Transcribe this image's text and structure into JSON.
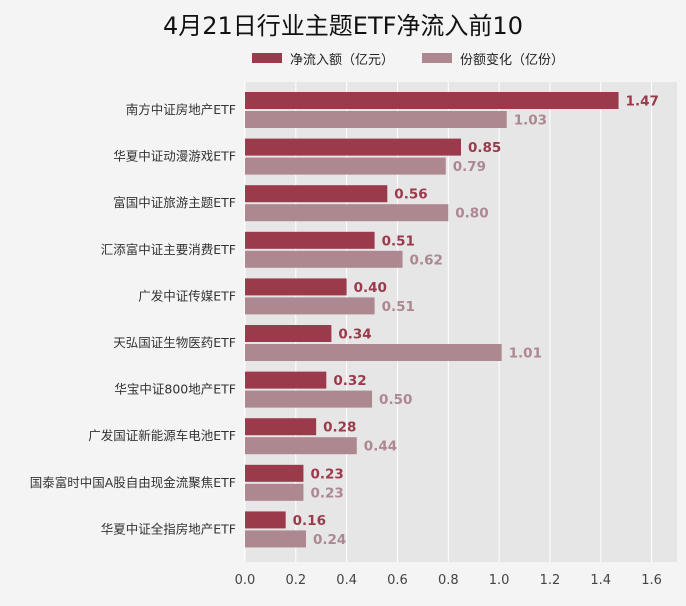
{
  "title": "4月21日行业主题ETF净流入前10",
  "legend": {
    "series1": "净流入额（亿元）",
    "series2": "份额变化（亿份）"
  },
  "colors": {
    "series1": "#9b3a4b",
    "series2": "#ad8890",
    "plot_bg": "#e6e6e6",
    "grid": "#ffffff"
  },
  "chart_data": {
    "type": "bar",
    "orientation": "horizontal",
    "title": "4月21日行业主题ETF净流入前10",
    "categories": [
      "南方中证房地产ETF",
      "华夏中证动漫游戏ETF",
      "富国中证旅游主题ETF",
      "汇添富中证主要消费ETF",
      "广发中证传媒ETF",
      "天弘国证生物医药ETF",
      "华宝中证800地产ETF",
      "广发国证新能源车电池ETF",
      "国泰富时中国A股自由现金流聚焦ETF",
      "华夏中证全指房地产ETF"
    ],
    "series": [
      {
        "name": "净流入额（亿元）",
        "values": [
          1.47,
          0.85,
          0.56,
          0.51,
          0.4,
          0.34,
          0.32,
          0.28,
          0.23,
          0.16
        ]
      },
      {
        "name": "份额变化（亿份）",
        "values": [
          1.03,
          0.79,
          0.8,
          0.62,
          0.51,
          1.01,
          0.5,
          0.44,
          0.23,
          0.24
        ]
      }
    ],
    "value_labels": [
      [
        "1.47",
        "0.85",
        "0.56",
        "0.51",
        "0.40",
        "0.34",
        "0.32",
        "0.28",
        "0.23",
        "0.16"
      ],
      [
        "1.03",
        "0.79",
        "0.80",
        "0.62",
        "0.51",
        "1.01",
        "0.50",
        "0.44",
        "0.23",
        "0.24"
      ]
    ],
    "xlim": [
      0,
      1.7
    ],
    "xticks": [
      0,
      0.2,
      0.4,
      0.6,
      0.8,
      1,
      1.2,
      1.4,
      1.6
    ],
    "xtick_labels": [
      "0.0",
      "0.2",
      "0.4",
      "0.6",
      "0.8",
      "1.0",
      "1.2",
      "1.4",
      "1.6"
    ],
    "grid": true,
    "legend_position": "top"
  }
}
